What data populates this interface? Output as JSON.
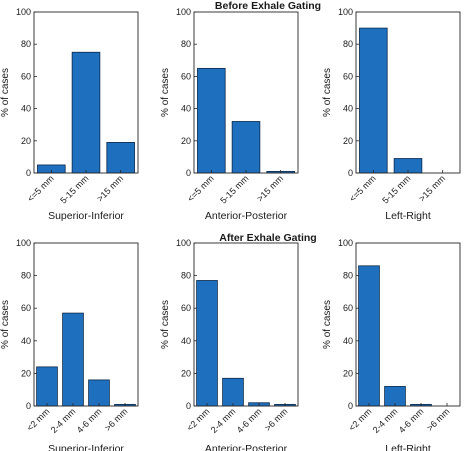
{
  "row_titles": [
    "Before Exhale Gating",
    "After Exhale Gating"
  ],
  "chart_data": [
    {
      "type": "bar",
      "row": 0,
      "categories": [
        "<=5 mm",
        "5-15 mm",
        ">15 mm"
      ],
      "values": [
        5,
        75,
        19
      ],
      "xlabel": "Superior-Inferior",
      "ylabel": "% of cases",
      "ylim": [
        0,
        100
      ],
      "yticks": [
        0,
        20,
        40,
        60,
        80,
        100
      ],
      "grid": false,
      "bar_color": "#1f6fbf"
    },
    {
      "type": "bar",
      "row": 0,
      "categories": [
        "<=5 mm",
        "5-15 mm",
        ">15 mm"
      ],
      "values": [
        65,
        32,
        1
      ],
      "xlabel": "Anterior-Posterior",
      "ylabel": "% of cases",
      "ylim": [
        0,
        100
      ],
      "yticks": [
        0,
        20,
        40,
        60,
        80,
        100
      ],
      "grid": false,
      "bar_color": "#1f6fbf"
    },
    {
      "type": "bar",
      "row": 0,
      "categories": [
        "<=5 mm",
        "5-15 mm",
        ">15 mm"
      ],
      "values": [
        90,
        9,
        0
      ],
      "xlabel": "Left-Right",
      "ylabel": "% of cases",
      "ylim": [
        0,
        100
      ],
      "yticks": [
        0,
        20,
        40,
        60,
        80,
        100
      ],
      "grid": false,
      "bar_color": "#1f6fbf"
    },
    {
      "type": "bar",
      "row": 1,
      "categories": [
        "<2 mm",
        "2-4 mm",
        "4-6 mm",
        ">6 mm"
      ],
      "values": [
        24,
        57,
        16,
        1
      ],
      "xlabel": "Superior-Inferior",
      "ylabel": "% of cases",
      "ylim": [
        0,
        100
      ],
      "yticks": [
        0,
        20,
        40,
        60,
        80,
        100
      ],
      "grid": false,
      "bar_color": "#1f6fbf"
    },
    {
      "type": "bar",
      "row": 1,
      "categories": [
        "<2 mm",
        "2-4 mm",
        "4-6 mm",
        ">6 mm"
      ],
      "values": [
        77,
        17,
        2,
        1
      ],
      "xlabel": "Anterior-Posterior",
      "ylabel": "% of cases",
      "ylim": [
        0,
        100
      ],
      "yticks": [
        0,
        20,
        40,
        60,
        80,
        100
      ],
      "grid": false,
      "bar_color": "#1f6fbf"
    },
    {
      "type": "bar",
      "row": 1,
      "categories": [
        "<2 mm",
        "2-4 mm",
        "4-6 mm",
        ">6 mm"
      ],
      "values": [
        86,
        12,
        1,
        0
      ],
      "xlabel": "Left-Right",
      "ylabel": "% of cases",
      "ylim": [
        0,
        100
      ],
      "yticks": [
        0,
        20,
        40,
        60,
        80,
        100
      ],
      "grid": false,
      "bar_color": "#1f6fbf"
    }
  ]
}
